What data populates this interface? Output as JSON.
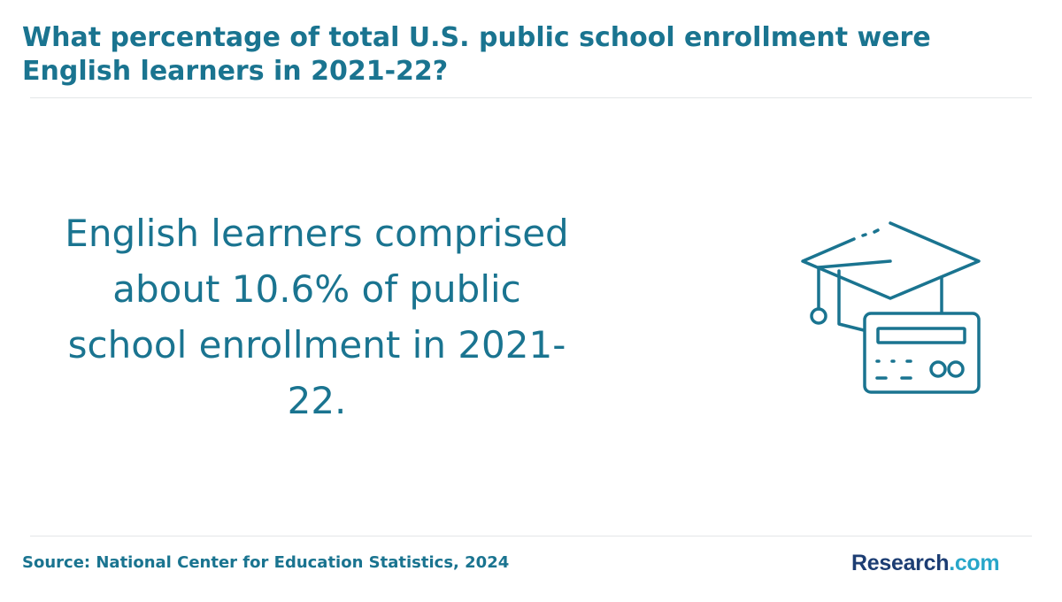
{
  "header": {
    "title": "What percentage of total U.S. public school enrollment were English learners in 2021-22?"
  },
  "main": {
    "statement": "English learners comprised about 10.6% of public school enrollment in 2021-22.",
    "illustration_icon": "graduation-cap-with-id-card-icon"
  },
  "footer": {
    "source": "Source: National Center for Education Statistics, 2024",
    "logo_brand": "Research",
    "logo_tld": ".com"
  },
  "colors": {
    "accent": "#1a7490",
    "logo_dark": "#1c3d73",
    "logo_light": "#28a6c9",
    "divider": "#e3e6e8"
  }
}
